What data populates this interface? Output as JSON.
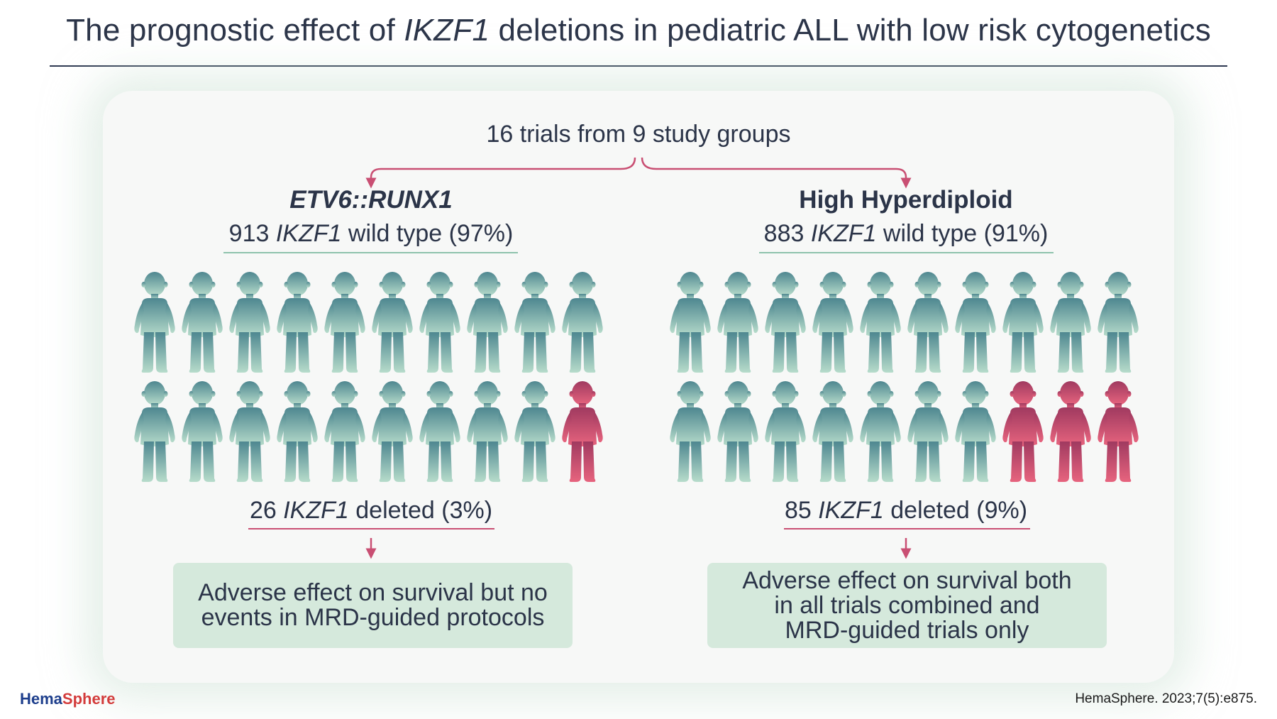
{
  "title": {
    "pre": "The prognostic effect of ",
    "gene": "IKZF1",
    "post": " deletions in pediatric ALL with low risk cytogenetics"
  },
  "root_label": "16 trials from 9 study groups",
  "groups": [
    {
      "title": "ETV6::RUNX1",
      "title_italic": true,
      "wild_type": {
        "count": "913",
        "gene": "IKZF1",
        "suffix": "wild type (97%)"
      },
      "deleted": {
        "count": "26",
        "gene": "IKZF1",
        "suffix": "deleted (3%)"
      },
      "figures_total": 20,
      "figures_deleted": 1,
      "outcome_lines": [
        "Adverse effect on survival but no",
        "events in MRD-guided protocols"
      ]
    },
    {
      "title": "High Hyperdiploid",
      "title_italic": false,
      "wild_type": {
        "count": "883",
        "gene": "IKZF1",
        "suffix": "wild type (91%)"
      },
      "deleted": {
        "count": "85",
        "gene": "IKZF1",
        "suffix": "deleted (9%)"
      },
      "figures_total": 20,
      "figures_deleted": 3,
      "outcome_lines": [
        "Adverse effect on survival both",
        "in all trials combined and",
        "MRD-guided trials only"
      ]
    }
  ],
  "colors": {
    "wild_type_top": "#4e8790",
    "wild_type_bottom": "#b7dccb",
    "deleted_top": "#a03a60",
    "deleted_bottom": "#e7647e",
    "arrow": "#c94f73",
    "outcome_box": "#d5e9dc"
  },
  "icons": {
    "figure": "child-silhouette-icon"
  },
  "footer": {
    "brand_a": "Hema",
    "brand_b": "Sphere",
    "citation": "HemaSphere. 2023;7(5):e875."
  }
}
